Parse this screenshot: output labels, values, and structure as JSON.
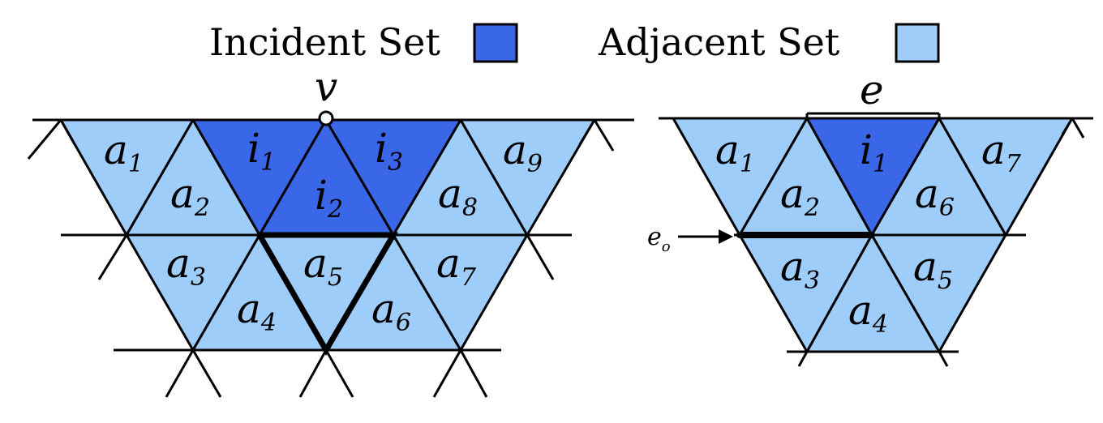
{
  "legend": {
    "incident_label": "Incident Set",
    "adjacent_label": "Adjacent Set"
  },
  "colors": {
    "incident": "#3a66e8",
    "adjacent": "#9fcdfa",
    "stroke": "#000000"
  },
  "left_diagram": {
    "vertex_label": "v",
    "incident": [
      {
        "base": "i",
        "sub": "1"
      },
      {
        "base": "i",
        "sub": "2"
      },
      {
        "base": "i",
        "sub": "3"
      }
    ],
    "adjacent": [
      {
        "base": "a",
        "sub": "1"
      },
      {
        "base": "a",
        "sub": "2"
      },
      {
        "base": "a",
        "sub": "3"
      },
      {
        "base": "a",
        "sub": "4"
      },
      {
        "base": "a",
        "sub": "5"
      },
      {
        "base": "a",
        "sub": "6"
      },
      {
        "base": "a",
        "sub": "7"
      },
      {
        "base": "a",
        "sub": "8"
      },
      {
        "base": "a",
        "sub": "9"
      }
    ]
  },
  "right_diagram": {
    "edge_label": "e",
    "edge_pointer_label": {
      "base": "e",
      "sub": "o"
    },
    "incident": [
      {
        "base": "i",
        "sub": "1"
      }
    ],
    "adjacent": [
      {
        "base": "a",
        "sub": "1"
      },
      {
        "base": "a",
        "sub": "2"
      },
      {
        "base": "a",
        "sub": "3"
      },
      {
        "base": "a",
        "sub": "4"
      },
      {
        "base": "a",
        "sub": "5"
      },
      {
        "base": "a",
        "sub": "6"
      },
      {
        "base": "a",
        "sub": "7"
      }
    ]
  }
}
